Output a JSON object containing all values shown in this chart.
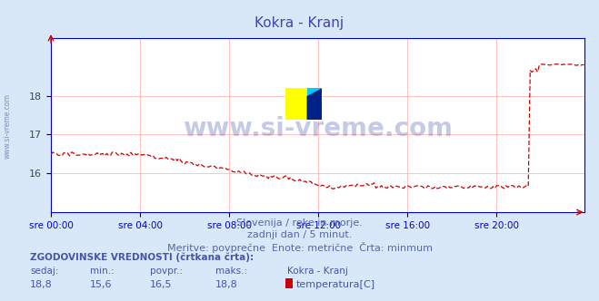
{
  "title": "Kokra - Kranj",
  "title_color": "#4444aa",
  "bg_color": "#d8e8f8",
  "plot_bg_color": "#ffffff",
  "grid_color": "#ffaaaa",
  "axis_color": "#0000cc",
  "line_color": "#cc0000",
  "ylim": [
    15.0,
    19.5
  ],
  "yticks": [
    16,
    17,
    18
  ],
  "xlim": [
    0,
    287
  ],
  "xtick_positions": [
    0,
    48,
    96,
    144,
    192,
    240
  ],
  "xtick_labels": [
    "sre 00:00",
    "sre 04:00",
    "sre 08:00",
    "sre 12:00",
    "sre 16:00",
    "sre 20:00"
  ],
  "watermark": "www.si-vreme.com",
  "watermark_color": "#4455aa",
  "watermark_alpha": 0.3,
  "subtitle1": "Slovenija / reke in morje.",
  "subtitle2": "zadnji dan / 5 minut.",
  "subtitle3": "Meritve: povprečne  Enote: metrične  Črta: minmum",
  "subtitle_color": "#5566aa",
  "table_header": "ZGODOVINSKE VREDNOSTI (črtkana črta):",
  "table_cols": [
    "sedaj:",
    "min.:",
    "povpr.:",
    "maks.:",
    "Kokra - Kranj"
  ],
  "table_vals": [
    "18,8",
    "15,6",
    "16,5",
    "18,8",
    "temperatura[C]"
  ],
  "table_color": "#4455aa",
  "legend_color": "#cc0000",
  "side_text": "www.si-vreme.com",
  "side_text_color": "#6677aa"
}
